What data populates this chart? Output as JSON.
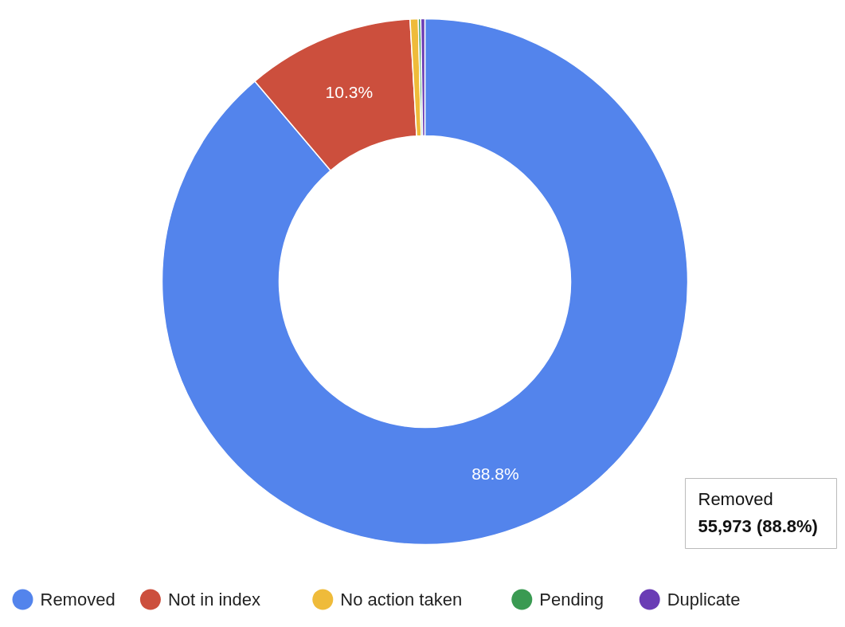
{
  "chart_data": {
    "type": "donut",
    "categories": [
      "Removed",
      "Not in index",
      "No action taken",
      "Pending",
      "Duplicate"
    ],
    "values": [
      88.8,
      10.3,
      0.5,
      0.15,
      0.25
    ],
    "colors": [
      "#5384ec",
      "#cc4f3d",
      "#efbb3a",
      "#3a9a52",
      "#6a3cb5"
    ],
    "value_labels": [
      "88.8%",
      "10.3%",
      null,
      null,
      null
    ],
    "legend": "bottom",
    "annotations": [
      "Removed",
      "55,973 (88.8%)"
    ]
  }
}
